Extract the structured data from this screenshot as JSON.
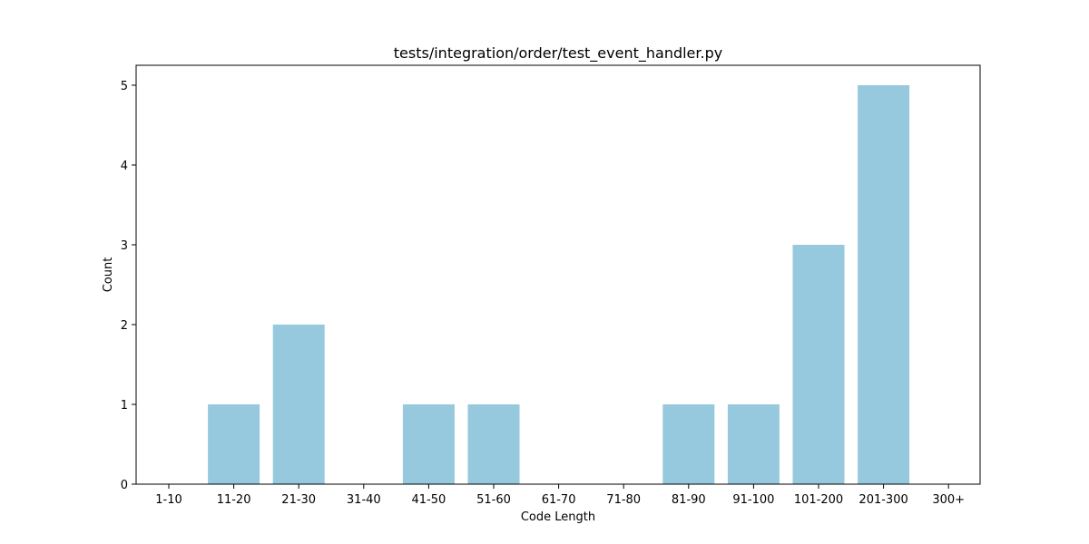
{
  "chart_data": {
    "type": "bar",
    "title": "tests/integration/order/test_event_handler.py",
    "xlabel": "Code Length",
    "ylabel": "Count",
    "categories": [
      "1-10",
      "11-20",
      "21-30",
      "31-40",
      "41-50",
      "51-60",
      "61-70",
      "71-80",
      "81-90",
      "91-100",
      "101-200",
      "201-300",
      "300+"
    ],
    "values": [
      0,
      1,
      2,
      0,
      1,
      1,
      0,
      0,
      1,
      1,
      3,
      5,
      0
    ],
    "ylim": [
      0,
      5.25
    ],
    "yticks": [
      0,
      1,
      2,
      3,
      4,
      5
    ],
    "bar_color": "#96c9dd",
    "grid": false,
    "legend": "none"
  }
}
